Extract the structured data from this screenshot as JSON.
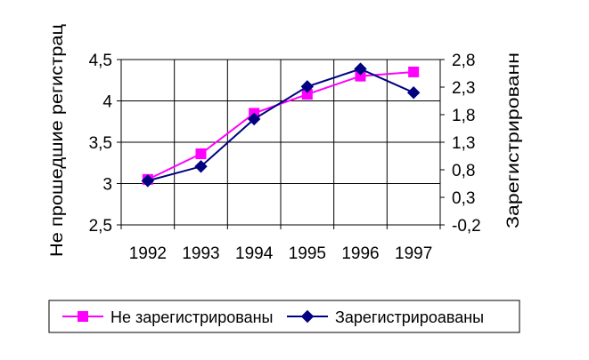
{
  "chart_data": {
    "type": "line",
    "categories": [
      "1992",
      "1993",
      "1994",
      "1995",
      "1996",
      "1997"
    ],
    "series": [
      {
        "name": "Не зарегистрированы",
        "axis": "left",
        "color": "#ff00ff",
        "marker": "square",
        "values": [
          3.05,
          3.36,
          3.85,
          4.08,
          4.3,
          4.35
        ]
      },
      {
        "name": "Зарегистрироаваны",
        "axis": "right",
        "color": "#000080",
        "marker": "diamond",
        "values": [
          0.6,
          0.86,
          1.72,
          2.31,
          2.63,
          2.2
        ]
      }
    ],
    "y_left": {
      "label": "Не прошедшие регистрац",
      "ylim": [
        2.5,
        4.5
      ],
      "ticks": [
        "4,5",
        "4",
        "3,5",
        "3",
        "2,5"
      ]
    },
    "y_right": {
      "label": "Зарегистрированн",
      "ylim": [
        -0.2,
        2.8
      ],
      "ticks": [
        "2,8",
        "2,3",
        "1,8",
        "1,3",
        "0,8",
        "0,3",
        "-0,2"
      ]
    },
    "grid": true,
    "legend_position": "bottom"
  }
}
